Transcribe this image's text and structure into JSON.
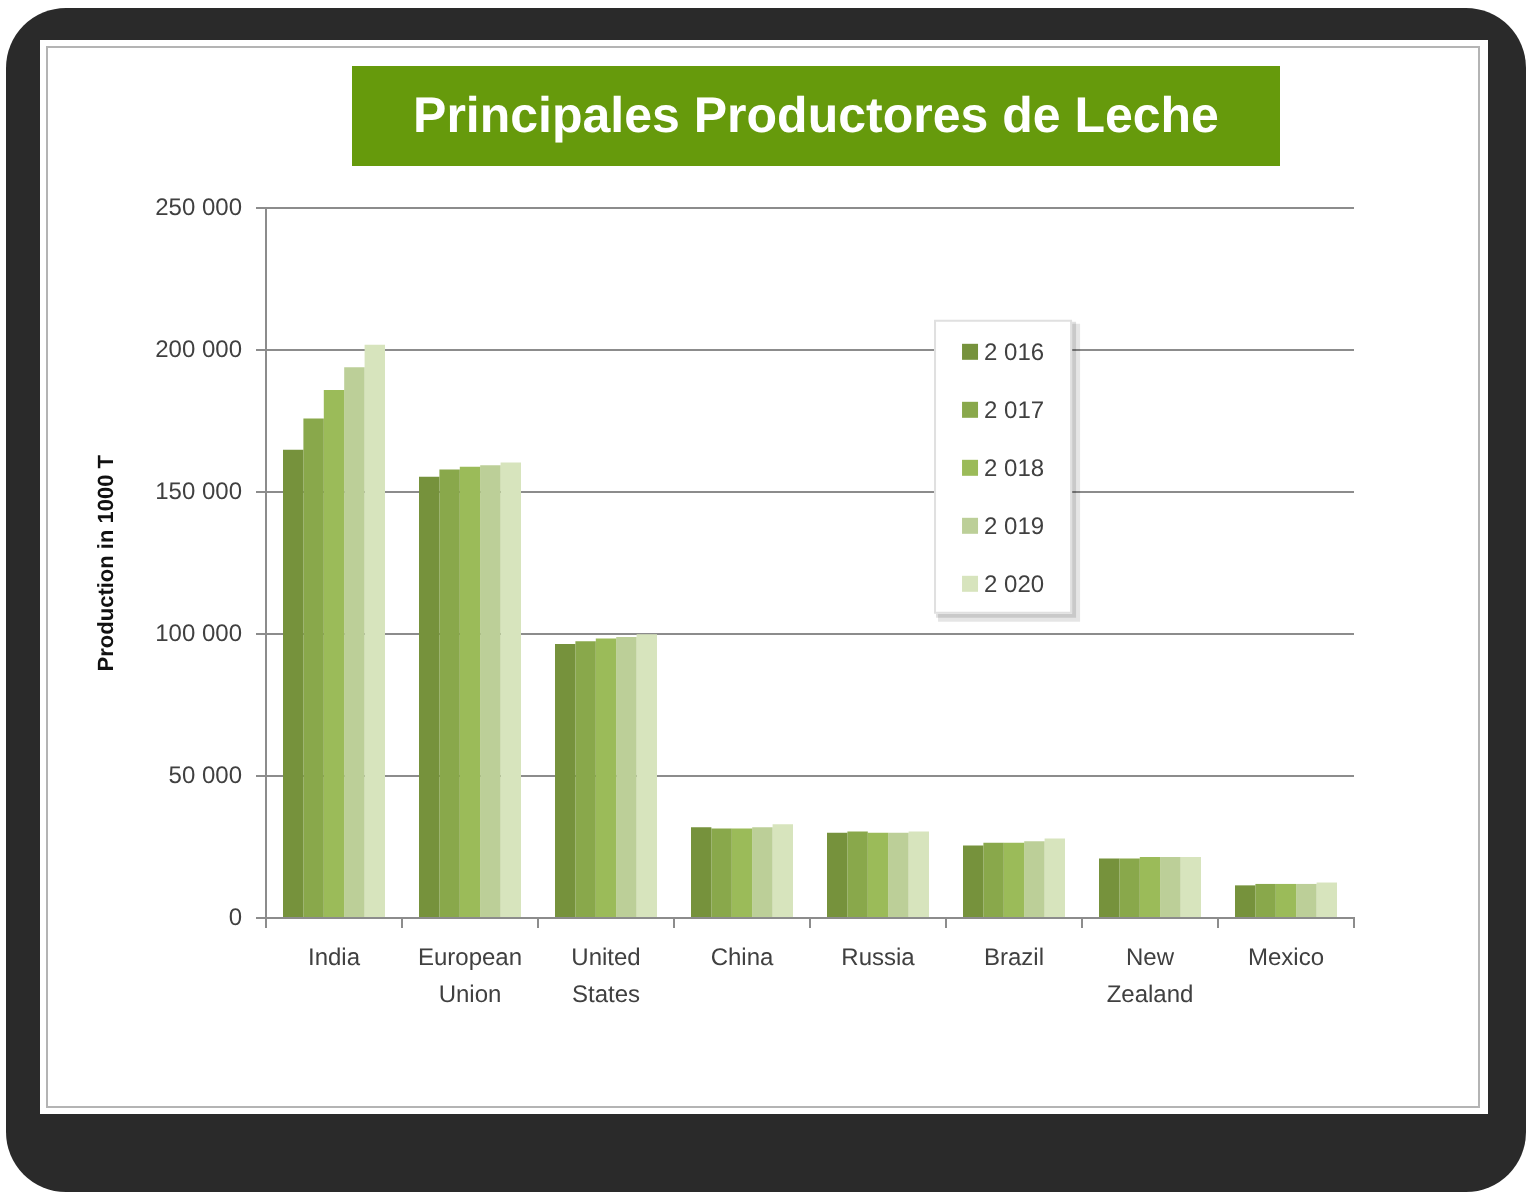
{
  "chart_data": {
    "type": "bar",
    "title": "Principales Productores de Leche",
    "ylabel": "Production in 1000 T",
    "categories": [
      "India",
      "European Union",
      "United States",
      "China",
      "Russia",
      "Brazil",
      "New Zealand",
      "Mexico"
    ],
    "series": [
      {
        "name": "2 016",
        "color": "#76923c",
        "values": [
          165000,
          155500,
          96500,
          32000,
          30000,
          25500,
          21000,
          11500
        ]
      },
      {
        "name": "2 017",
        "color": "#89a84b",
        "values": [
          176000,
          158000,
          97500,
          31500,
          30500,
          26500,
          21000,
          12000
        ]
      },
      {
        "name": "2 018",
        "color": "#9bbb59",
        "values": [
          186000,
          159000,
          98500,
          31500,
          30000,
          26500,
          21500,
          12000
        ]
      },
      {
        "name": "2 019",
        "color": "#bccf98",
        "values": [
          194000,
          159500,
          99000,
          32000,
          30000,
          27000,
          21500,
          12000
        ]
      },
      {
        "name": "2 020",
        "color": "#d7e4bd",
        "values": [
          202000,
          160500,
          100000,
          33000,
          30500,
          28000,
          21500,
          12500
        ]
      }
    ],
    "ylim": [
      0,
      250000
    ],
    "yticks": [
      0,
      {
        "value": 50000,
        "label": "50 000"
      },
      {
        "value": 100000,
        "label": "100 000"
      },
      {
        "value": 150000,
        "label": "150 000"
      },
      {
        "value": 200000,
        "label": "200 000"
      },
      {
        "value": 250000,
        "label": "250 000"
      }
    ],
    "grid": "y",
    "legend": "top right"
  }
}
